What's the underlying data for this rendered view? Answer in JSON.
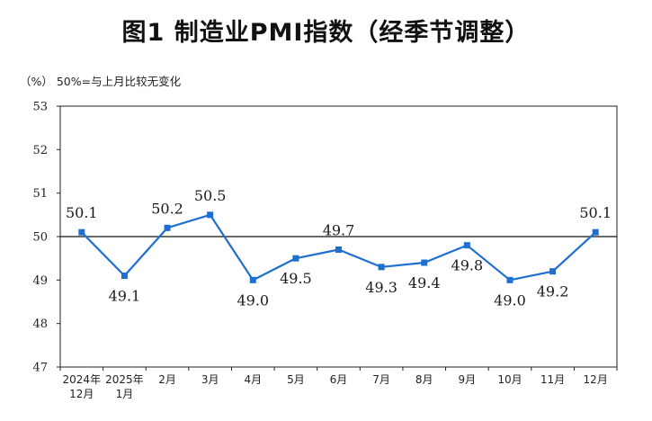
{
  "title": "图1  制造业PMI指数（经季节调整）",
  "unit_note": "（%）  50%=与上月比较无变化",
  "chart_data": {
    "type": "line",
    "title": "图1  制造业PMI指数（经季节调整）",
    "ylabel": "（%）",
    "note": "50%=与上月比较无变化",
    "ylim": [
      47,
      53
    ],
    "yticks": [
      47,
      48,
      49,
      50,
      51,
      52,
      53
    ],
    "reference_line": 50,
    "categories": [
      [
        "2024年",
        "12月"
      ],
      [
        "2025年",
        "1月"
      ],
      [
        "2月"
      ],
      [
        "3月"
      ],
      [
        "4月"
      ],
      [
        "5月"
      ],
      [
        "6月"
      ],
      [
        "7月"
      ],
      [
        "8月"
      ],
      [
        "9月"
      ],
      [
        "10月"
      ],
      [
        "11月"
      ],
      [
        "12月"
      ]
    ],
    "series": [
      {
        "values": [
          50.1,
          49.1,
          50.2,
          50.5,
          49.0,
          49.5,
          49.7,
          49.3,
          49.4,
          49.8,
          49.0,
          49.2,
          50.1
        ],
        "labels": [
          "50.1",
          "49.1",
          "50.2",
          "50.5",
          "49.0",
          "49.5",
          "49.7",
          "49.3",
          "49.4",
          "49.8",
          "49.0",
          "49.2",
          "50.1"
        ],
        "label_position": [
          "above",
          "below",
          "above",
          "above",
          "below",
          "below",
          "above",
          "below",
          "below",
          "below",
          "below",
          "below",
          "above"
        ],
        "color": "#1f6fd1"
      }
    ],
    "grid": false
  }
}
